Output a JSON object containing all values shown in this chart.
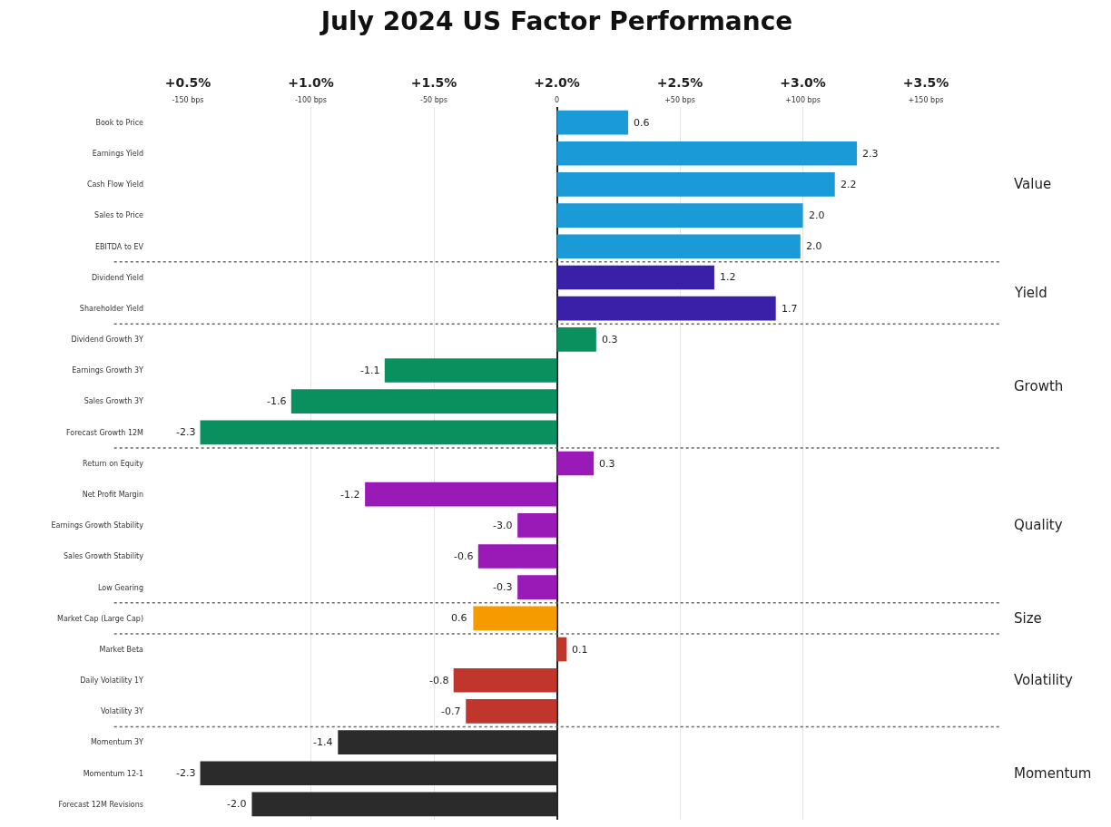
{
  "chart_data": {
    "type": "bar",
    "orientation": "horizontal",
    "title": "July 2024 US Factor Performance",
    "categories": [
      "Book to Price",
      "Earnings Yield",
      "Cash Flow Yield",
      "Sales to Price",
      "EBITDA to EV",
      "Dividend Yield",
      "Shareholder Yield",
      "Dividend Growth 3Y",
      "Earnings Growth 3Y",
      "Sales Growth 3Y",
      "Forecast Growth 12M",
      "Return on Equity",
      "Net Profit Margin",
      "Earnings Growth Stability",
      "Sales Growth Stability",
      "Low Gearing",
      "Market Cap (Large Cap)",
      "Market Beta",
      "Daily Volatility 1Y",
      "Volatility 3Y",
      "Momentum 3Y",
      "Momentum 12-1",
      "Forecast 12M Revisions"
    ],
    "series": [
      {
        "name": "Value",
        "color": "#1a9ad6",
        "values": [
          29,
          122,
          113,
          100,
          99,
          null,
          null,
          null,
          null,
          null,
          null,
          null,
          null,
          null,
          null,
          null,
          null,
          null,
          null,
          null,
          null,
          null,
          null
        ]
      },
      {
        "name": "Yield",
        "color": "#3a1fa8",
        "values": [
          null,
          null,
          null,
          null,
          null,
          64,
          89,
          null,
          null,
          null,
          null,
          null,
          null,
          null,
          null,
          null,
          null,
          null,
          null,
          null,
          null,
          null,
          null
        ]
      },
      {
        "name": "Growth",
        "color": "#0a8f5f",
        "values": [
          null,
          null,
          null,
          null,
          null,
          null,
          null,
          16,
          -70,
          -108,
          -145,
          null,
          null,
          null,
          null,
          null,
          null,
          null,
          null,
          null,
          null,
          null,
          null
        ]
      },
      {
        "name": "Quality",
        "color": "#9a1ab8",
        "values": [
          null,
          null,
          null,
          null,
          null,
          null,
          null,
          null,
          null,
          null,
          null,
          15,
          -78,
          -16,
          -32,
          -16,
          null,
          null,
          null,
          null,
          null,
          null,
          null
        ]
      },
      {
        "name": "Size",
        "color": "#f59b00",
        "values": [
          null,
          null,
          null,
          null,
          null,
          null,
          null,
          null,
          null,
          null,
          null,
          null,
          null,
          null,
          null,
          null,
          -34,
          null,
          null,
          null,
          null,
          null,
          null
        ]
      },
      {
        "name": "Volatility",
        "color": "#c0362c",
        "values": [
          null,
          null,
          null,
          null,
          null,
          null,
          null,
          null,
          null,
          null,
          null,
          null,
          null,
          null,
          null,
          null,
          null,
          4,
          -42,
          -37,
          null,
          null,
          null
        ]
      },
      {
        "name": "Momentum",
        "color": "#2b2b2b",
        "values": [
          null,
          null,
          null,
          null,
          null,
          null,
          null,
          null,
          null,
          null,
          null,
          null,
          null,
          null,
          null,
          null,
          null,
          null,
          null,
          null,
          -89,
          -145,
          -124
        ]
      }
    ],
    "annotations": [
      {
        "text": "0.6",
        "x": 29,
        "y": "Book to Price"
      },
      {
        "text": "2.3",
        "x": 122,
        "y": "Earnings Yield"
      },
      {
        "text": "2.2",
        "x": 113,
        "y": "Cash Flow Yield"
      },
      {
        "text": "2.0",
        "x": 100,
        "y": "Sales to Price"
      },
      {
        "text": "2.0",
        "x": 99,
        "y": "EBITDA to EV"
      },
      {
        "text": "1.2",
        "x": 64,
        "y": "Dividend Yield"
      },
      {
        "text": "1.7",
        "x": 89,
        "y": "Shareholder Yield"
      },
      {
        "text": "0.3",
        "x": 16,
        "y": "Dividend Growth 3Y"
      },
      {
        "text": "-1.1",
        "x": -70,
        "y": "Earnings Growth 3Y"
      },
      {
        "text": "-1.6",
        "x": -108,
        "y": "Sales Growth 3Y"
      },
      {
        "text": "-2.3",
        "x": -145,
        "y": "Forecast Growth 12M"
      },
      {
        "text": "0.3",
        "x": 15,
        "y": "Return on Equity"
      },
      {
        "text": "-1.2",
        "x": -78,
        "y": "Net Profit Margin"
      },
      {
        "text": "-3.0",
        "x": -16,
        "y": "Earnings Growth Stability"
      },
      {
        "text": "-0.6",
        "x": -32,
        "y": "Sales Growth Stability"
      },
      {
        "text": "-0.3",
        "x": -16,
        "y": "Low Gearing"
      },
      {
        "text": "0.6",
        "x": -34,
        "y": "Market Cap (Large Cap)"
      },
      {
        "text": "0.1",
        "x": 4,
        "y": "Market Beta"
      },
      {
        "text": "-0.8",
        "x": -42,
        "y": "Daily Volatility 1Y"
      },
      {
        "text": "-0.7",
        "x": -37,
        "y": "Volatility 3Y"
      },
      {
        "text": "-1.4",
        "x": -89,
        "y": "Momentum 3Y"
      },
      {
        "text": "-2.3",
        "x": -145,
        "y": "Momentum 12-1"
      },
      {
        "text": "-2.0",
        "x": -124,
        "y": "Forecast 12M Revisions"
      }
    ],
    "xlim": [
      -150,
      150
    ],
    "xticks": [
      {
        "value": -150,
        "label": "-150 bps"
      },
      {
        "value": -100,
        "label": "-100 bps"
      },
      {
        "value": -50,
        "label": "-50 bps"
      },
      0,
      {
        "value": 50,
        "label": "+50 bps"
      },
      {
        "value": 100,
        "label": "+100 bps"
      },
      {
        "value": 150,
        "label": "+150 bps"
      }
    ],
    "x2lim": [
      0.5,
      3.5
    ],
    "x2ticks": [
      {
        "value": 0.5,
        "label": "+0.5%"
      },
      {
        "value": 1.0,
        "label": "+1.0%"
      },
      {
        "value": 1.5,
        "label": "+1.5%"
      },
      {
        "value": 2.0,
        "label": "+2.0%"
      },
      {
        "value": 2.5,
        "label": "+2.5%"
      },
      {
        "value": 3.0,
        "label": "+3.0%"
      },
      {
        "value": 3.5,
        "label": "+3.5%"
      }
    ],
    "grid": "x",
    "legend": false
  }
}
